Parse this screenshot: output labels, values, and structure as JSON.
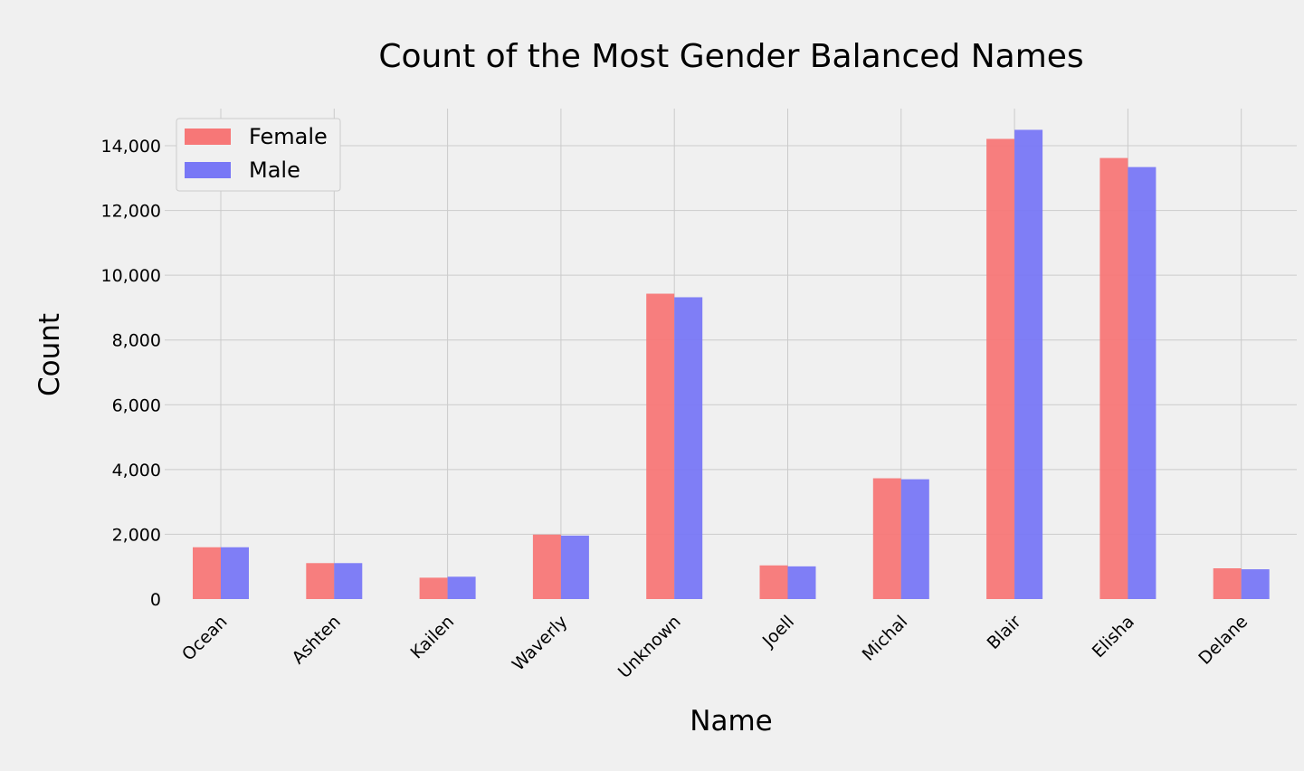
{
  "chart_data": {
    "type": "bar",
    "title": "Count of the Most Gender Balanced Names",
    "xlabel": "Name",
    "ylabel": "Count",
    "categories": [
      "Ocean",
      "Ashten",
      "Kailen",
      "Waverly",
      "Unknown",
      "Joell",
      "Michal",
      "Blair",
      "Elisha",
      "Delane"
    ],
    "series": [
      {
        "name": "Female",
        "color": "#f77777",
        "values": [
          1600,
          1110,
          660,
          1990,
          9430,
          1040,
          3730,
          14210,
          13620,
          950
        ]
      },
      {
        "name": "Male",
        "color": "#7877f6",
        "values": [
          1600,
          1110,
          690,
          1960,
          9320,
          1010,
          3700,
          14490,
          13340,
          920
        ]
      }
    ],
    "ylim": [
      0,
      14000
    ],
    "yticks": [
      "0",
      "2,000",
      "4,000",
      "6,000",
      "8,000",
      "10,000",
      "12,000",
      "14,000"
    ],
    "grid": true,
    "legend_position": "top-left"
  }
}
